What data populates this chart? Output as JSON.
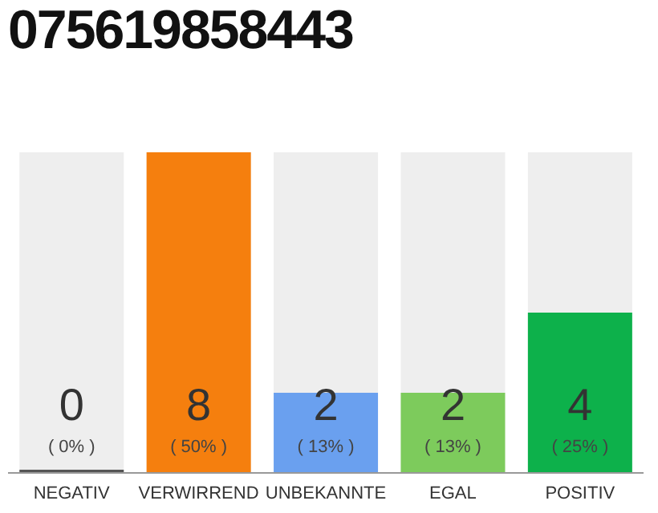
{
  "chart_data": {
    "type": "bar",
    "title": "075619858443",
    "categories": [
      "NEGATIV",
      "VERWIRREND",
      "UNBEKANNTE",
      "EGAL",
      "POSITIV"
    ],
    "values": [
      0,
      8,
      2,
      2,
      4
    ],
    "colors": [
      "#555555",
      "#f57f0e",
      "#6aa0ef",
      "#7dcb5c",
      "#0db14b"
    ],
    "ylim": [
      0,
      8
    ],
    "data_labels": true,
    "annotations": [
      "( 0% )",
      "( 50% )",
      "( 13% )",
      "( 13% )",
      "( 25% )"
    ],
    "grid": false,
    "legend": false
  }
}
